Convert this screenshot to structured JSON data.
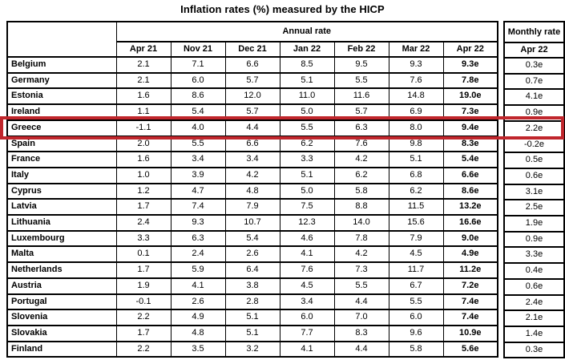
{
  "chart_data": {
    "type": "table",
    "title": "Inflation rates (%) measured by the HICP",
    "annual_group_header": "Annual rate",
    "monthly_group_header": "Monthly rate",
    "annual_columns": [
      "Apr 21",
      "Nov 21",
      "Dec 21",
      "Jan 22",
      "Feb 22",
      "Mar 22",
      "Apr 22"
    ],
    "monthly_column": "Apr 22",
    "rows": [
      {
        "country": "Belgium",
        "annual": [
          "2.1",
          "7.1",
          "6.6",
          "8.5",
          "9.5",
          "9.3",
          "9.3e"
        ],
        "monthly": "0.3e"
      },
      {
        "country": "Germany",
        "annual": [
          "2.1",
          "6.0",
          "5.7",
          "5.1",
          "5.5",
          "7.6",
          "7.8e"
        ],
        "monthly": "0.7e"
      },
      {
        "country": "Estonia",
        "annual": [
          "1.6",
          "8.6",
          "12.0",
          "11.0",
          "11.6",
          "14.8",
          "19.0e"
        ],
        "monthly": "4.1e"
      },
      {
        "country": "Ireland",
        "annual": [
          "1.1",
          "5.4",
          "5.7",
          "5.0",
          "5.7",
          "6.9",
          "7.3e"
        ],
        "monthly": "0.9e"
      },
      {
        "country": "Greece",
        "annual": [
          "-1.1",
          "4.0",
          "4.4",
          "5.5",
          "6.3",
          "8.0",
          "9.4e"
        ],
        "monthly": "2.2e"
      },
      {
        "country": "Spain",
        "annual": [
          "2.0",
          "5.5",
          "6.6",
          "6.2",
          "7.6",
          "9.8",
          "8.3e"
        ],
        "monthly": "-0.2e"
      },
      {
        "country": "France",
        "annual": [
          "1.6",
          "3.4",
          "3.4",
          "3.3",
          "4.2",
          "5.1",
          "5.4e"
        ],
        "monthly": "0.5e"
      },
      {
        "country": "Italy",
        "annual": [
          "1.0",
          "3.9",
          "4.2",
          "5.1",
          "6.2",
          "6.8",
          "6.6e"
        ],
        "monthly": "0.6e"
      },
      {
        "country": "Cyprus",
        "annual": [
          "1.2",
          "4.7",
          "4.8",
          "5.0",
          "5.8",
          "6.2",
          "8.6e"
        ],
        "monthly": "3.1e"
      },
      {
        "country": "Latvia",
        "annual": [
          "1.7",
          "7.4",
          "7.9",
          "7.5",
          "8.8",
          "11.5",
          "13.2e"
        ],
        "monthly": "2.5e"
      },
      {
        "country": "Lithuania",
        "annual": [
          "2.4",
          "9.3",
          "10.7",
          "12.3",
          "14.0",
          "15.6",
          "16.6e"
        ],
        "monthly": "1.9e"
      },
      {
        "country": "Luxembourg",
        "annual": [
          "3.3",
          "6.3",
          "5.4",
          "4.6",
          "7.8",
          "7.9",
          "9.0e"
        ],
        "monthly": "0.9e"
      },
      {
        "country": "Malta",
        "annual": [
          "0.1",
          "2.4",
          "2.6",
          "4.1",
          "4.2",
          "4.5",
          "4.9e"
        ],
        "monthly": "3.3e"
      },
      {
        "country": "Netherlands",
        "annual": [
          "1.7",
          "5.9",
          "6.4",
          "7.6",
          "7.3",
          "11.7",
          "11.2e"
        ],
        "monthly": "0.4e"
      },
      {
        "country": "Austria",
        "annual": [
          "1.9",
          "4.1",
          "3.8",
          "4.5",
          "5.5",
          "6.7",
          "7.2e"
        ],
        "monthly": "0.6e"
      },
      {
        "country": "Portugal",
        "annual": [
          "-0.1",
          "2.6",
          "2.8",
          "3.4",
          "4.4",
          "5.5",
          "7.4e"
        ],
        "monthly": "2.4e"
      },
      {
        "country": "Slovenia",
        "annual": [
          "2.2",
          "4.9",
          "5.1",
          "6.0",
          "7.0",
          "6.0",
          "7.4e"
        ],
        "monthly": "2.1e"
      },
      {
        "country": "Slovakia",
        "annual": [
          "1.7",
          "4.8",
          "5.1",
          "7.7",
          "8.3",
          "9.6",
          "10.9e"
        ],
        "monthly": "1.4e"
      },
      {
        "country": "Finland",
        "annual": [
          "2.2",
          "3.5",
          "3.2",
          "4.1",
          "4.4",
          "5.8",
          "5.6e"
        ],
        "monthly": "0.3e"
      }
    ],
    "highlight": {
      "country": "Greece",
      "color": "#c0262c"
    }
  }
}
